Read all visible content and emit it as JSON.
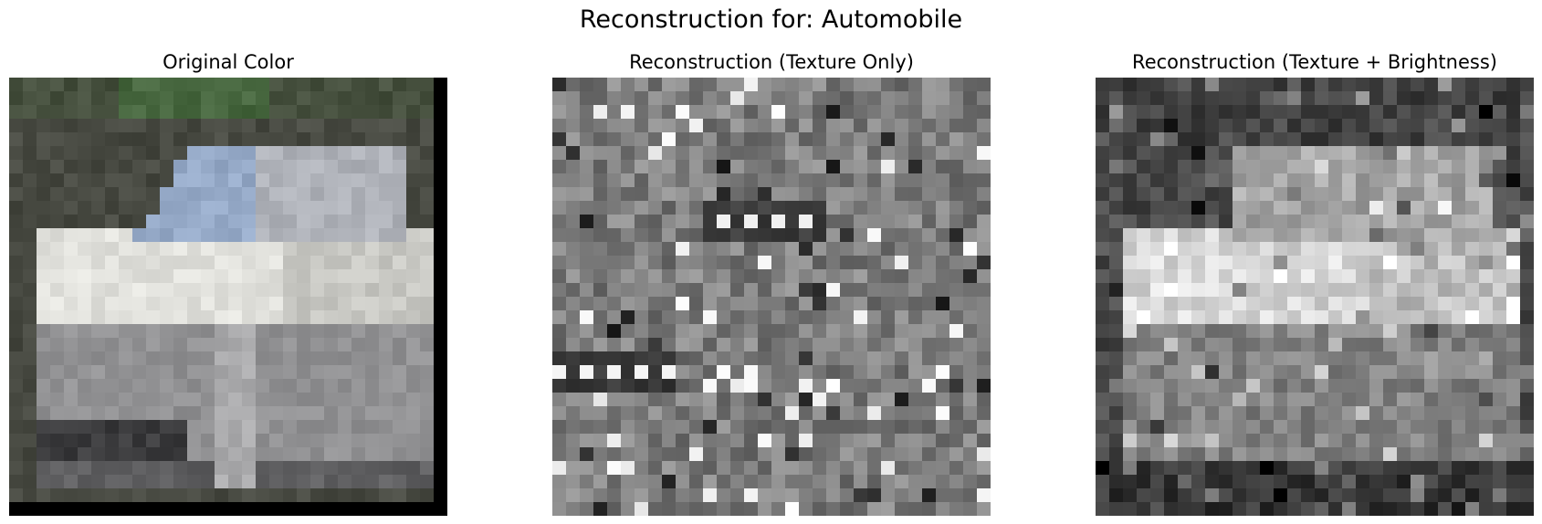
{
  "figure": {
    "title": "Reconstruction for: Automobile"
  },
  "panels": [
    {
      "id": "original",
      "title": "Original Color"
    },
    {
      "id": "texture",
      "title": "Reconstruction (Texture Only)"
    },
    {
      "id": "texture_brightness",
      "title": "Reconstruction (Texture + Brightness)"
    }
  ]
}
